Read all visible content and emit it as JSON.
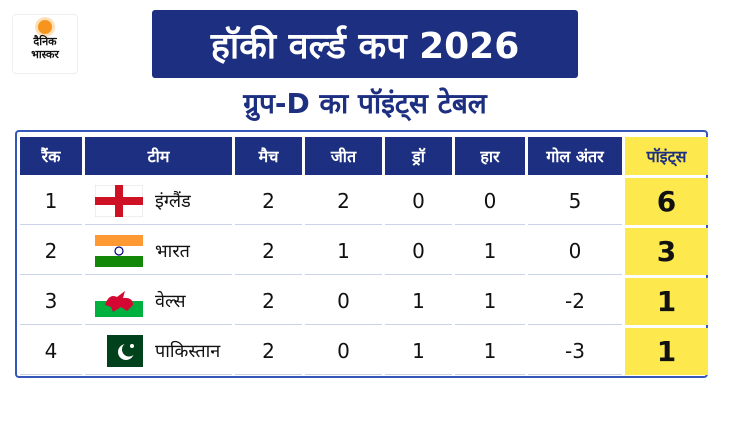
{
  "logo": {
    "line1": "दैनिक",
    "line2": "भास्कर"
  },
  "title": "हॉकी वर्ल्ड कप 2026",
  "subtitle": "ग्रुप-D का पॉइंट्स टेबल",
  "table": {
    "headers": [
      "रैंक",
      "टीम",
      "मैच",
      "जीत",
      "ड्रॉ",
      "हार",
      "गोल अंतर",
      "पॉइंट्स"
    ],
    "rows": [
      [
        1,
        "इंग्लैंड",
        2,
        2,
        0,
        0,
        5,
        6
      ],
      [
        2,
        "भारत",
        2,
        1,
        0,
        1,
        0,
        3
      ],
      [
        3,
        "वेल्स",
        2,
        0,
        1,
        1,
        -2,
        1
      ],
      [
        4,
        "पाकिस्तान",
        2,
        0,
        1,
        1,
        -3,
        1
      ]
    ]
  }
}
